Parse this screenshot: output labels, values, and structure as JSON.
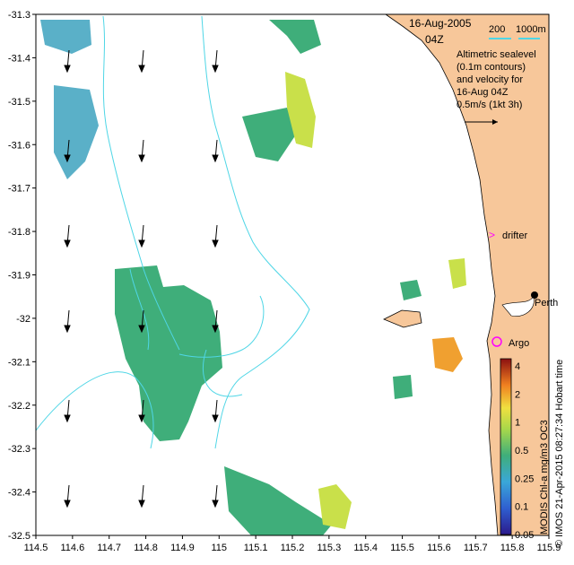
{
  "title": {
    "date": "16-Aug-2005",
    "time": "04Z"
  },
  "scale_bar": {
    "left_label": "200",
    "right_label": "1000m"
  },
  "legend_text": {
    "lines": [
      "Altimetric sealevel",
      "(0.1m contours)",
      "and velocity for",
      "16-Aug 04Z"
    ],
    "velocity_scale": "0.5m/s (1kt 3h)"
  },
  "markers": {
    "drifter": {
      "label": "drifter",
      "lon": 115.75,
      "lat": -31.82
    },
    "argo": {
      "label": "Argo",
      "lon": 115.76,
      "lat": -32.065
    },
    "perth": {
      "label": "Perth",
      "lon": 115.86,
      "lat": -31.95
    }
  },
  "colorbar": {
    "title": "MODIS Chl-a mg/m3 OC3",
    "tick_labels": [
      "4",
      "2",
      "1",
      "0.5",
      "0.25",
      "0.1",
      "0.05"
    ]
  },
  "credit": "© IMOS 21-Apr-2015 08:27:34 Hobart time",
  "axes": {
    "x_ticks": [
      "114.5",
      "114.6",
      "114.7",
      "114.8",
      "114.9",
      "115",
      "115.1",
      "115.2",
      "115.3",
      "115.4",
      "115.5",
      "115.6",
      "115.7",
      "115.8",
      "115.9"
    ],
    "y_ticks": [
      "-31.3",
      "-31.4",
      "-31.5",
      "-31.6",
      "-31.7",
      "-31.8",
      "-31.9",
      "-32",
      "-32.1",
      "-32.2",
      "-32.3",
      "-32.4",
      "-32.5"
    ],
    "x_range": [
      114.5,
      115.9
    ],
    "y_range": [
      -32.5,
      -31.3
    ]
  },
  "colors": {
    "land": "#f7c79a",
    "contour": "#4fd6e6",
    "chl_main": "#3fae7a",
    "chl_high": "#c9e04a",
    "drifter": "#ff00ff"
  }
}
